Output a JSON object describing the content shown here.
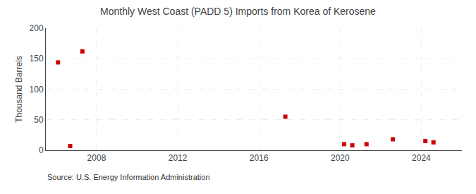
{
  "chart_data": {
    "type": "scatter",
    "title": "Monthly West Coast (PADD 5) Imports from Korea of Kerosene",
    "ylabel": "Thousand Barrels",
    "annotations": [
      "Source: U.S. Energy Information Administration"
    ],
    "x": [
      2006.1,
      2006.7,
      2007.3,
      2017.3,
      2020.2,
      2020.6,
      2021.3,
      2022.6,
      2024.2,
      2024.6
    ],
    "values": [
      144,
      7,
      162,
      55,
      10,
      8,
      10,
      18,
      15,
      13
    ],
    "color": "#cc0000",
    "marker": "square",
    "xlim": [
      2005.5,
      2026.0
    ],
    "ylim": [
      0,
      200
    ],
    "xticks": [
      2008,
      2012,
      2016,
      2020,
      2024
    ],
    "yticks": [
      0,
      50,
      100,
      150,
      200
    ],
    "grid": true
  }
}
